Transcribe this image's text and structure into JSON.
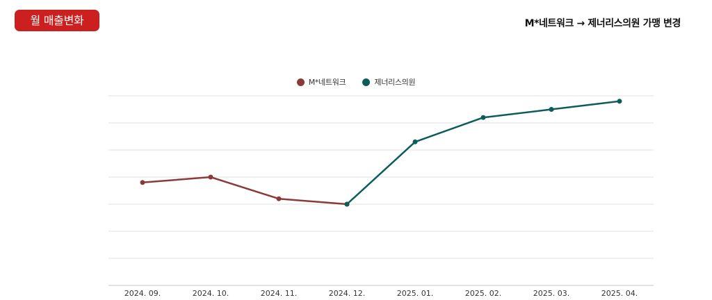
{
  "badge": {
    "label": "월 매출변화"
  },
  "heading": {
    "title": "M*네트워크 → 제너리스의원 가맹 변경"
  },
  "colors": {
    "badge_bg": "#cc1f1f",
    "series_1": "#8b3a3a",
    "series_2": "#0d5c5c",
    "grid": "#e2e2e2"
  },
  "chart_data": {
    "type": "line",
    "title": "",
    "xlabel": "",
    "ylabel": "",
    "categories": [
      "2024. 09.",
      "2024. 10.",
      "2024. 11.",
      "2024. 12.",
      "2025. 01.",
      "2025. 02.",
      "2025. 03.",
      "2025. 04."
    ],
    "ylim": [
      0,
      7
    ],
    "grid": true,
    "legend": "top-center",
    "y_tick_labels": "not shown",
    "series": [
      {
        "name": "M*네트워크",
        "color": "#8b3a3a",
        "values": [
          3.8,
          4.0,
          3.2,
          3.0,
          null,
          null,
          null,
          null
        ]
      },
      {
        "name": "제너리스의원",
        "color": "#0d5c5c",
        "values": [
          null,
          null,
          null,
          3.0,
          5.3,
          6.2,
          6.5,
          6.8
        ]
      }
    ]
  }
}
